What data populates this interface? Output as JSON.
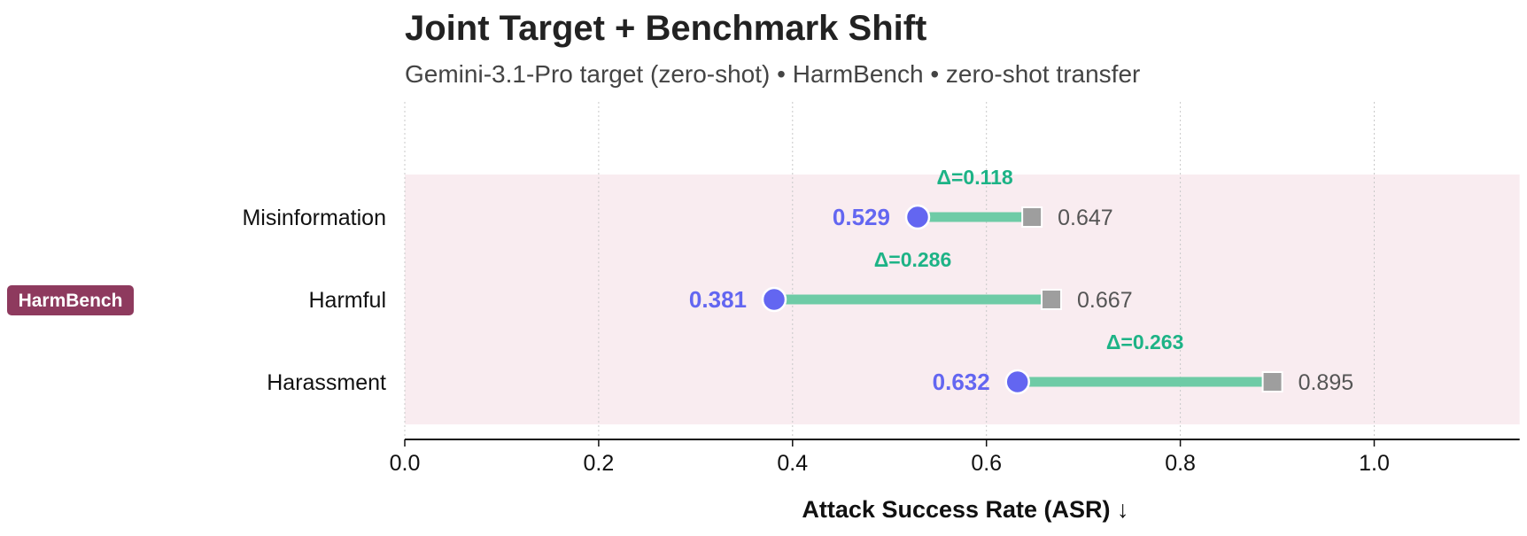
{
  "chart_data": {
    "type": "dumbbell",
    "title": "Joint Target + Benchmark Shift",
    "subtitle": "Gemini-3.1-Pro target (zero-shot) • HarmBench • zero-shot transfer",
    "xlabel": "Attack Success Rate (ASR)  ↓",
    "xlim": [
      0.0,
      1.15
    ],
    "xticks": [
      0.0,
      0.2,
      0.4,
      0.6,
      0.8,
      1.0
    ],
    "xtick_labels": [
      "0.0",
      "0.2",
      "0.4",
      "0.6",
      "0.8",
      "1.0"
    ],
    "grid": "vertical dotted",
    "group": "HarmBench",
    "rows": [
      {
        "category": "Misinformation",
        "start": 0.529,
        "end": 0.647,
        "start_label": "0.529",
        "end_label": "0.647",
        "delta_label": "Δ=0.118"
      },
      {
        "category": "Harmful",
        "start": 0.381,
        "end": 0.667,
        "start_label": "0.381",
        "end_label": "0.667",
        "delta_label": "Δ=0.286"
      },
      {
        "category": "Harassment",
        "start": 0.632,
        "end": 0.895,
        "start_label": "0.632",
        "end_label": "0.895",
        "delta_label": "Δ=0.263"
      }
    ],
    "colors": {
      "start_marker": "#6366F1",
      "end_marker": "#9E9E9E",
      "connector": "#6ECBA6",
      "delta_text": "#1DB386",
      "group_band": "#F9ECF0",
      "group_badge": "#8E3A5E",
      "end_text": "#555555"
    }
  }
}
